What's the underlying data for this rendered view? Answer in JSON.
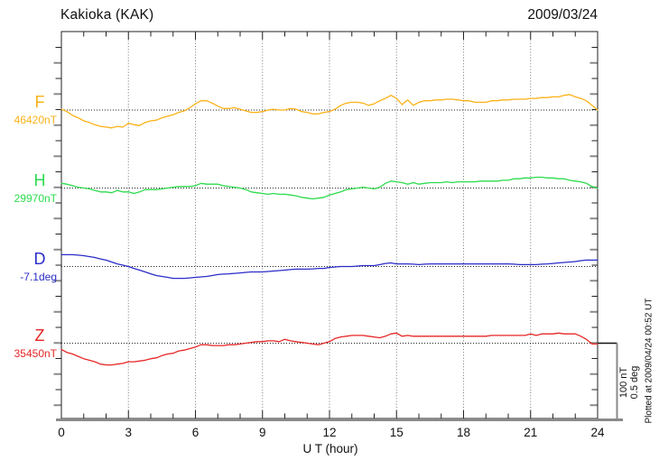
{
  "chart_data": {
    "type": "line",
    "title": "Kakioka (KAK)",
    "date": "2009/03/24",
    "xlabel": "U T (hour)",
    "x_range_hours": [
      0,
      24
    ],
    "x_tick_labels": [
      "0",
      "3",
      "6",
      "9",
      "12",
      "15",
      "18",
      "21",
      "24"
    ],
    "minor_tick_every_hours": 1,
    "major_tick_every_hours": 3,
    "grid": {
      "vertical_dotted_every_hours": 3,
      "baseline_dotted_per_channel": true
    },
    "hour_step": 0.25,
    "scale": {
      "nT_per_div": 100,
      "deg_per_div": 0.5,
      "legend": [
        "100 nT",
        "0.5 deg"
      ]
    },
    "footnote": "Plotted at 2009/04/24 00:52 UT",
    "series": [
      {
        "name": "F",
        "unit": "nT",
        "base": 46420,
        "base_label": "46420nT",
        "color": "#FBB117",
        "offsets": [
          1,
          -2,
          -7,
          -10,
          -14,
          -16,
          -19,
          -21,
          -22,
          -23,
          -21,
          -22,
          -17,
          -19,
          -20,
          -16,
          -14,
          -13,
          -10,
          -8,
          -6,
          -3,
          -1,
          3,
          8,
          12,
          12,
          9,
          5,
          2,
          2,
          3,
          1,
          -1,
          -3,
          -3,
          -2,
          0,
          1,
          0,
          0,
          2,
          1,
          -2,
          -3,
          -5,
          -5,
          -3,
          -2,
          1,
          6,
          9,
          10,
          10,
          9,
          6,
          8,
          12,
          15,
          19,
          15,
          7,
          13,
          6,
          10,
          12,
          12,
          13,
          13,
          14,
          14,
          13,
          12,
          12,
          10,
          10,
          10,
          12,
          12,
          13,
          13,
          14,
          14,
          14,
          15,
          15,
          16,
          16,
          17,
          17,
          19,
          20,
          17,
          15,
          12,
          6,
          0
        ]
      },
      {
        "name": "H",
        "unit": "nT",
        "base": 29970,
        "base_label": "29970nT",
        "color": "#2BDB4C",
        "offsets": [
          6,
          5,
          3,
          1,
          0,
          -1,
          -3,
          -5,
          -5,
          -6,
          -3,
          -5,
          -5,
          -7,
          -5,
          -2,
          -2,
          -2,
          -1,
          0,
          1,
          2,
          2,
          2,
          3,
          6,
          5,
          5,
          5,
          3,
          2,
          1,
          0,
          -2,
          -5,
          -6,
          -7,
          -8,
          -7,
          -8,
          -8,
          -9,
          -10,
          -12,
          -13,
          -14,
          -13,
          -12,
          -9,
          -7,
          -5,
          -2,
          -1,
          0,
          1,
          0,
          -1,
          1,
          6,
          9,
          8,
          7,
          5,
          7,
          5,
          6,
          7,
          7,
          7,
          8,
          7,
          8,
          8,
          8,
          8,
          9,
          9,
          9,
          9,
          10,
          10,
          12,
          12,
          13,
          13,
          14,
          14,
          13,
          13,
          12,
          12,
          10,
          9,
          8,
          6,
          2,
          0
        ]
      },
      {
        "name": "D",
        "unit": "deg",
        "base": -7.1,
        "base_label": "-7.1deg",
        "color": "#2A2CC8",
        "offsets": [
          0.076,
          0.076,
          0.076,
          0.073,
          0.07,
          0.064,
          0.058,
          0.049,
          0.041,
          0.029,
          0.017,
          0.009,
          0.0,
          -0.012,
          -0.023,
          -0.035,
          -0.047,
          -0.058,
          -0.064,
          -0.07,
          -0.076,
          -0.076,
          -0.076,
          -0.073,
          -0.07,
          -0.067,
          -0.064,
          -0.058,
          -0.052,
          -0.049,
          -0.047,
          -0.044,
          -0.041,
          -0.038,
          -0.035,
          -0.035,
          -0.035,
          -0.032,
          -0.029,
          -0.026,
          -0.023,
          -0.02,
          -0.017,
          -0.017,
          -0.017,
          -0.015,
          -0.012,
          -0.012,
          -0.006,
          -0.003,
          0.0,
          0.0,
          0.0,
          0.003,
          0.006,
          0.006,
          0.006,
          0.012,
          0.02,
          0.023,
          0.017,
          0.017,
          0.017,
          0.015,
          0.012,
          0.015,
          0.017,
          0.017,
          0.017,
          0.017,
          0.017,
          0.017,
          0.017,
          0.017,
          0.017,
          0.017,
          0.017,
          0.017,
          0.017,
          0.017,
          0.017,
          0.015,
          0.012,
          0.012,
          0.012,
          0.012,
          0.015,
          0.017,
          0.02,
          0.023,
          0.026,
          0.029,
          0.032,
          0.038,
          0.041,
          0.041,
          0.041
        ]
      },
      {
        "name": "Z",
        "unit": "nT",
        "base": 35450,
        "base_label": "35450nT",
        "color": "#E62626",
        "offsets": [
          -8,
          -12,
          -14,
          -17,
          -20,
          -22,
          -24,
          -27,
          -28,
          -28,
          -27,
          -26,
          -24,
          -24,
          -23,
          -22,
          -20,
          -19,
          -16,
          -14,
          -13,
          -10,
          -9,
          -7,
          -5,
          -2,
          -2,
          -3,
          -3,
          -3,
          -2,
          -2,
          -1,
          0,
          1,
          2,
          2,
          3,
          3,
          2,
          5,
          3,
          2,
          1,
          0,
          -1,
          -2,
          0,
          2,
          6,
          8,
          9,
          10,
          10,
          10,
          9,
          8,
          7,
          9,
          12,
          13,
          9,
          10,
          9,
          9,
          9,
          9,
          9,
          9,
          9,
          9,
          9,
          9,
          9,
          9,
          9,
          9,
          10,
          10,
          10,
          10,
          10,
          10,
          10,
          12,
          10,
          12,
          12,
          12,
          13,
          12,
          12,
          12,
          9,
          5,
          -1,
          -1
        ]
      }
    ]
  }
}
